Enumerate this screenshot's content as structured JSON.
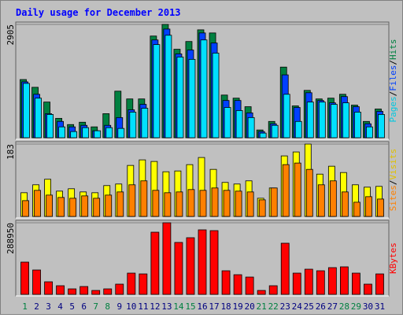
{
  "chart_data": [
    {
      "type": "bar",
      "title": "Daily usage for December 2013",
      "ylim": [
        0,
        2905
      ],
      "yticks": [
        2905
      ],
      "legend_separator": "/",
      "series": [
        {
          "name": "Hits",
          "color": "#008040",
          "values": [
            1492,
            1293,
            915,
            497,
            338,
            398,
            279,
            617,
            1194,
            995,
            995,
            2607,
            2905,
            2268,
            2467,
            2766,
            2686,
            1094,
            1015,
            796,
            199,
            418,
            1811,
            816,
            1214,
            995,
            1015,
            1114,
            836,
            418,
            736
          ]
        },
        {
          "name": "Files",
          "color": "#0040ff",
          "values": [
            1433,
            1114,
            617,
            418,
            279,
            318,
            179,
            318,
            517,
            716,
            856,
            2507,
            2786,
            2149,
            2248,
            2686,
            2428,
            955,
            955,
            637,
            159,
            358,
            1612,
            776,
            1154,
            955,
            895,
            1055,
            796,
            358,
            677
          ]
        },
        {
          "name": "Pages",
          "color": "#00e0ff",
          "values": [
            1393,
            1015,
            597,
            279,
            159,
            259,
            179,
            259,
            239,
            657,
            756,
            2388,
            2627,
            2069,
            2010,
            2507,
            2169,
            776,
            697,
            517,
            119,
            318,
            1114,
            418,
            915,
            915,
            856,
            895,
            657,
            279,
            597
          ]
        }
      ]
    },
    {
      "type": "bar",
      "ylim": [
        0,
        183
      ],
      "yticks": [
        183
      ],
      "legend_separator": "/",
      "series": [
        {
          "name": "Visits",
          "color": "#ffff00",
          "values": [
            60,
            80,
            94,
            64,
            70,
            62,
            60,
            78,
            82,
            129,
            143,
            139,
            113,
            115,
            131,
            149,
            119,
            86,
            82,
            90,
            46,
            72,
            153,
            163,
            183,
            107,
            127,
            111,
            80,
            74,
            76
          ]
        },
        {
          "name": "Sites",
          "color": "#ff8000",
          "values": [
            40,
            66,
            54,
            48,
            46,
            52,
            46,
            54,
            62,
            80,
            90,
            66,
            60,
            62,
            68,
            66,
            72,
            66,
            64,
            62,
            42,
            72,
            131,
            135,
            119,
            80,
            90,
            62,
            36,
            50,
            44
          ]
        }
      ]
    },
    {
      "type": "bar",
      "ylim": [
        0,
        288950
      ],
      "yticks": [
        288950
      ],
      "categories": [
        "1",
        "2",
        "3",
        "4",
        "5",
        "6",
        "7",
        "8",
        "9",
        "10",
        "11",
        "12",
        "13",
        "14",
        "15",
        "16",
        "17",
        "18",
        "19",
        "20",
        "21",
        "22",
        "23",
        "24",
        "25",
        "26",
        "27",
        "28",
        "29",
        "30",
        "31"
      ],
      "x_label_colors": [
        "#008040",
        "#000080",
        "#000080",
        "#000080",
        "#000080",
        "#000080",
        "#008040",
        "#008040",
        "#000080",
        "#000080",
        "#000080",
        "#000080",
        "#000080",
        "#008040",
        "#008040",
        "#000080",
        "#000080",
        "#000080",
        "#000080",
        "#000080",
        "#008040",
        "#008040",
        "#000080",
        "#000080",
        "#000080",
        "#000080",
        "#000080",
        "#008040",
        "#008040",
        "#000080",
        "#000080"
      ],
      "series": [
        {
          "name": "KBytes",
          "color": "#ff0000",
          "values": [
            130188,
            98434,
            50804,
            34928,
            22227,
            31753,
            15876,
            22227,
            41279,
            85732,
            82557,
            250850,
            288950,
            209571,
            228623,
            260375,
            257200,
            95259,
            79382,
            69856,
            15876,
            34928,
            206395,
            85732,
            101609,
            95259,
            107960,
            111136,
            85732,
            41279,
            82557
          ]
        }
      ]
    }
  ]
}
